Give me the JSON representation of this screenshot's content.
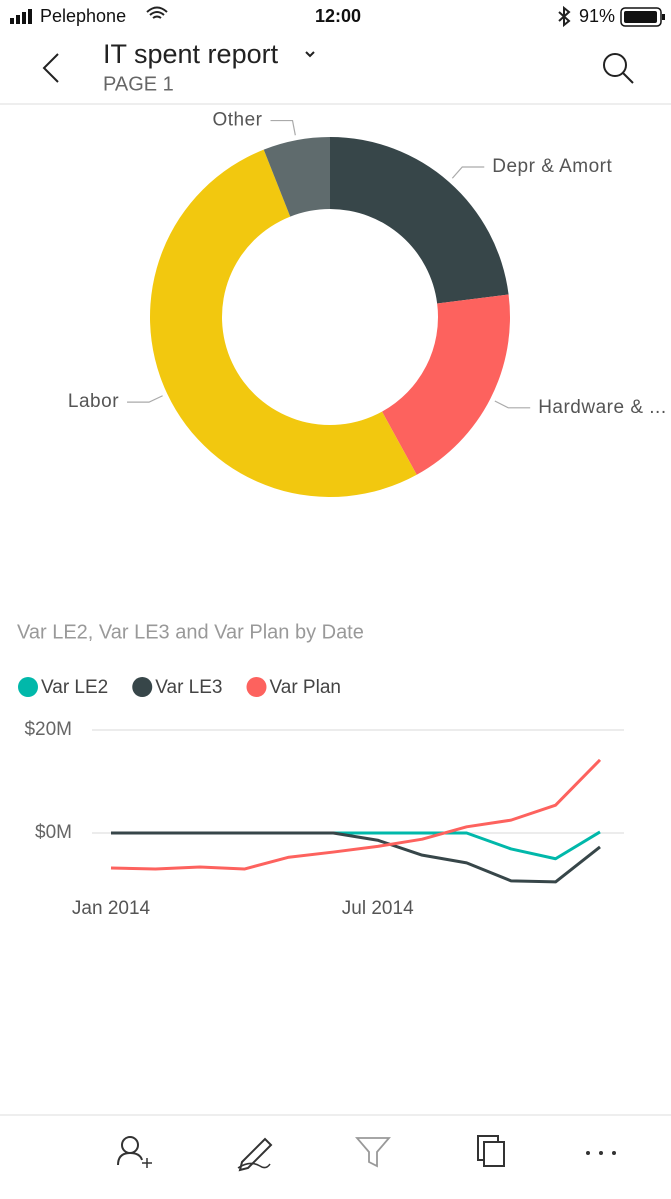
{
  "status_bar": {
    "carrier": "Pelephone",
    "time": "12:00",
    "battery": "91%"
  },
  "header": {
    "title": "IT spent report",
    "subtitle": "PAGE 1"
  },
  "chart_data": [
    {
      "type": "pie",
      "donut": true,
      "categories": [
        "Depr & Amort",
        "Hardware & ...",
        "Labor",
        "Other"
      ],
      "values": [
        23,
        19,
        52,
        6
      ],
      "colors": [
        "#374649",
        "#fd625e",
        "#f2c80f",
        "#5f6b6d"
      ]
    },
    {
      "type": "line",
      "title": "Var LE2, Var LE3 and Var Plan by Date",
      "categories": [
        "Jan 2014",
        null,
        null,
        null,
        null,
        null,
        "Jul 2014",
        null,
        null,
        null,
        null,
        null
      ],
      "series": [
        {
          "name": "Var LE2",
          "color": "#01b8aa",
          "values": [
            0,
            0,
            0,
            0,
            0,
            0,
            0,
            0,
            0,
            -3100000,
            -5000000,
            200000
          ]
        },
        {
          "name": "Var LE3",
          "color": "#374649",
          "values": [
            0,
            0,
            0,
            0,
            0,
            0,
            -1400000,
            -4300000,
            -5800000,
            -9300000,
            -9500000,
            -2700000
          ]
        },
        {
          "name": "Var Plan",
          "color": "#fd625e",
          "values": [
            -6800000,
            -7000000,
            -6600000,
            -7000000,
            -4700000,
            -3700000,
            -2600000,
            -1200000,
            1200000,
            2500000,
            5400000,
            14200000
          ]
        }
      ],
      "ylim": [
        -12000000,
        20000000
      ],
      "yticks": [
        {
          "value": 20000000,
          "label": "$20M"
        },
        {
          "value": 0,
          "label": "$0M"
        }
      ],
      "grid": true,
      "legend": "top-left"
    }
  ]
}
